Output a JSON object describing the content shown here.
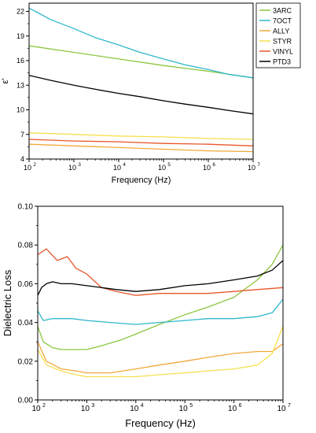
{
  "chart_data": [
    {
      "type": "line",
      "title": "",
      "xlabel": "Frequency (Hz)",
      "ylabel": "ε'",
      "x_scale": "log",
      "xlim": [
        100,
        10000000
      ],
      "ylim": [
        4,
        23
      ],
      "x_ticks": [
        100,
        1000,
        10000,
        100000,
        1000000,
        10000000
      ],
      "x_tick_labels": [
        "10",
        "10",
        "10",
        "10",
        "10",
        "10"
      ],
      "x_tick_exponents": [
        "2",
        "3",
        "4",
        "5",
        "6",
        "7"
      ],
      "y_ticks": [
        4,
        7,
        10,
        13,
        16,
        19,
        22
      ],
      "y_tick_labels": [
        "4",
        "7",
        "10",
        "13",
        "16",
        "19",
        "22"
      ],
      "grid": false,
      "legend_position": "outside-right",
      "series": [
        {
          "name": "3ARC",
          "color": "#8cc63f",
          "x": [
            100,
            1000,
            10000,
            100000,
            1000000,
            10000000
          ],
          "y": [
            17.8,
            17.0,
            16.2,
            15.4,
            14.7,
            13.9
          ]
        },
        {
          "name": "7OCT",
          "color": "#2fb8cc",
          "x": [
            100,
            150,
            300,
            1000,
            3000,
            10000,
            30000,
            100000,
            300000,
            1000000,
            3000000,
            10000000
          ],
          "y": [
            22.4,
            21.9,
            21.0,
            19.9,
            18.8,
            17.9,
            17.0,
            16.2,
            15.5,
            14.9,
            14.3,
            13.9
          ]
        },
        {
          "name": "ALLY",
          "color": "#f2a93b",
          "x": [
            100,
            1000,
            10000,
            100000,
            1000000,
            10000000
          ],
          "y": [
            5.8,
            5.6,
            5.4,
            5.2,
            5.0,
            4.9
          ]
        },
        {
          "name": "STYR",
          "color": "#f5e050",
          "x": [
            100,
            1000,
            10000,
            100000,
            1000000,
            10000000
          ],
          "y": [
            7.2,
            7.0,
            6.8,
            6.7,
            6.5,
            6.4
          ]
        },
        {
          "name": "VINYL",
          "color": "#e8562a",
          "x": [
            100,
            1000,
            10000,
            100000,
            1000000,
            10000000
          ],
          "y": [
            6.4,
            6.2,
            6.1,
            5.9,
            5.8,
            5.6
          ]
        },
        {
          "name": "PTD3",
          "color": "#000000",
          "x": [
            100,
            300,
            1000,
            3000,
            10000,
            30000,
            100000,
            300000,
            1000000,
            3000000,
            10000000
          ],
          "y": [
            14.2,
            13.6,
            13.0,
            12.5,
            12.0,
            11.6,
            11.1,
            10.7,
            10.3,
            9.9,
            9.5
          ]
        }
      ]
    },
    {
      "type": "line",
      "title": "",
      "xlabel": "Frequency (Hz)",
      "ylabel": "Dielectric Loss",
      "x_scale": "log",
      "xlim": [
        100,
        10000000
      ],
      "ylim": [
        0.0,
        0.1
      ],
      "x_ticks": [
        100,
        1000,
        10000,
        100000,
        1000000,
        10000000
      ],
      "x_tick_labels": [
        "10",
        "10",
        "10",
        "10",
        "10",
        "10"
      ],
      "x_tick_exponents": [
        "2",
        "3",
        "4",
        "5",
        "6",
        "7"
      ],
      "y_ticks": [
        0.0,
        0.02,
        0.04,
        0.06,
        0.08,
        0.1
      ],
      "y_tick_labels": [
        "0.00",
        "0.02",
        "0.04",
        "0.06",
        "0.08",
        "0.10"
      ],
      "grid": false,
      "series": [
        {
          "color": "#8cc63f",
          "x": [
            100,
            130,
            200,
            300,
            500,
            1000,
            2000,
            5000,
            10000,
            30000,
            100000,
            300000,
            1000000,
            3000000,
            6000000,
            10000000
          ],
          "y": [
            0.038,
            0.03,
            0.027,
            0.026,
            0.026,
            0.026,
            0.028,
            0.031,
            0.034,
            0.039,
            0.044,
            0.048,
            0.053,
            0.062,
            0.07,
            0.08
          ]
        },
        {
          "color": "#2fb8cc",
          "x": [
            100,
            130,
            200,
            500,
            1000,
            3000,
            10000,
            30000,
            100000,
            300000,
            1000000,
            3000000,
            6000000,
            10000000
          ],
          "y": [
            0.046,
            0.041,
            0.042,
            0.042,
            0.041,
            0.04,
            0.039,
            0.04,
            0.041,
            0.042,
            0.042,
            0.043,
            0.045,
            0.052
          ]
        },
        {
          "color": "#f2a93b",
          "x": [
            100,
            150,
            300,
            600,
            1000,
            3000,
            10000,
            30000,
            100000,
            300000,
            1000000,
            3000000,
            6000000,
            10000000
          ],
          "y": [
            0.03,
            0.02,
            0.016,
            0.015,
            0.014,
            0.014,
            0.016,
            0.018,
            0.02,
            0.022,
            0.024,
            0.025,
            0.025,
            0.029
          ]
        },
        {
          "color": "#f5e050",
          "x": [
            100,
            150,
            300,
            600,
            1000,
            3000,
            10000,
            30000,
            100000,
            300000,
            1000000,
            3000000,
            6000000,
            10000000
          ],
          "y": [
            0.026,
            0.018,
            0.015,
            0.013,
            0.012,
            0.012,
            0.012,
            0.013,
            0.014,
            0.015,
            0.016,
            0.018,
            0.024,
            0.038
          ]
        },
        {
          "color": "#e8562a",
          "x": [
            100,
            150,
            250,
            400,
            600,
            1000,
            2000,
            4000,
            10000,
            30000,
            100000,
            300000,
            1000000,
            3000000,
            10000000
          ],
          "y": [
            0.075,
            0.078,
            0.072,
            0.074,
            0.068,
            0.065,
            0.058,
            0.056,
            0.054,
            0.055,
            0.055,
            0.055,
            0.056,
            0.057,
            0.058
          ]
        },
        {
          "color": "#000000",
          "x": [
            100,
            120,
            150,
            200,
            300,
            500,
            1000,
            2000,
            4000,
            10000,
            30000,
            100000,
            300000,
            1000000,
            3000000,
            6000000,
            10000000
          ],
          "y": [
            0.054,
            0.058,
            0.06,
            0.061,
            0.06,
            0.06,
            0.059,
            0.058,
            0.057,
            0.056,
            0.057,
            0.059,
            0.06,
            0.062,
            0.064,
            0.067,
            0.072
          ]
        }
      ]
    }
  ]
}
